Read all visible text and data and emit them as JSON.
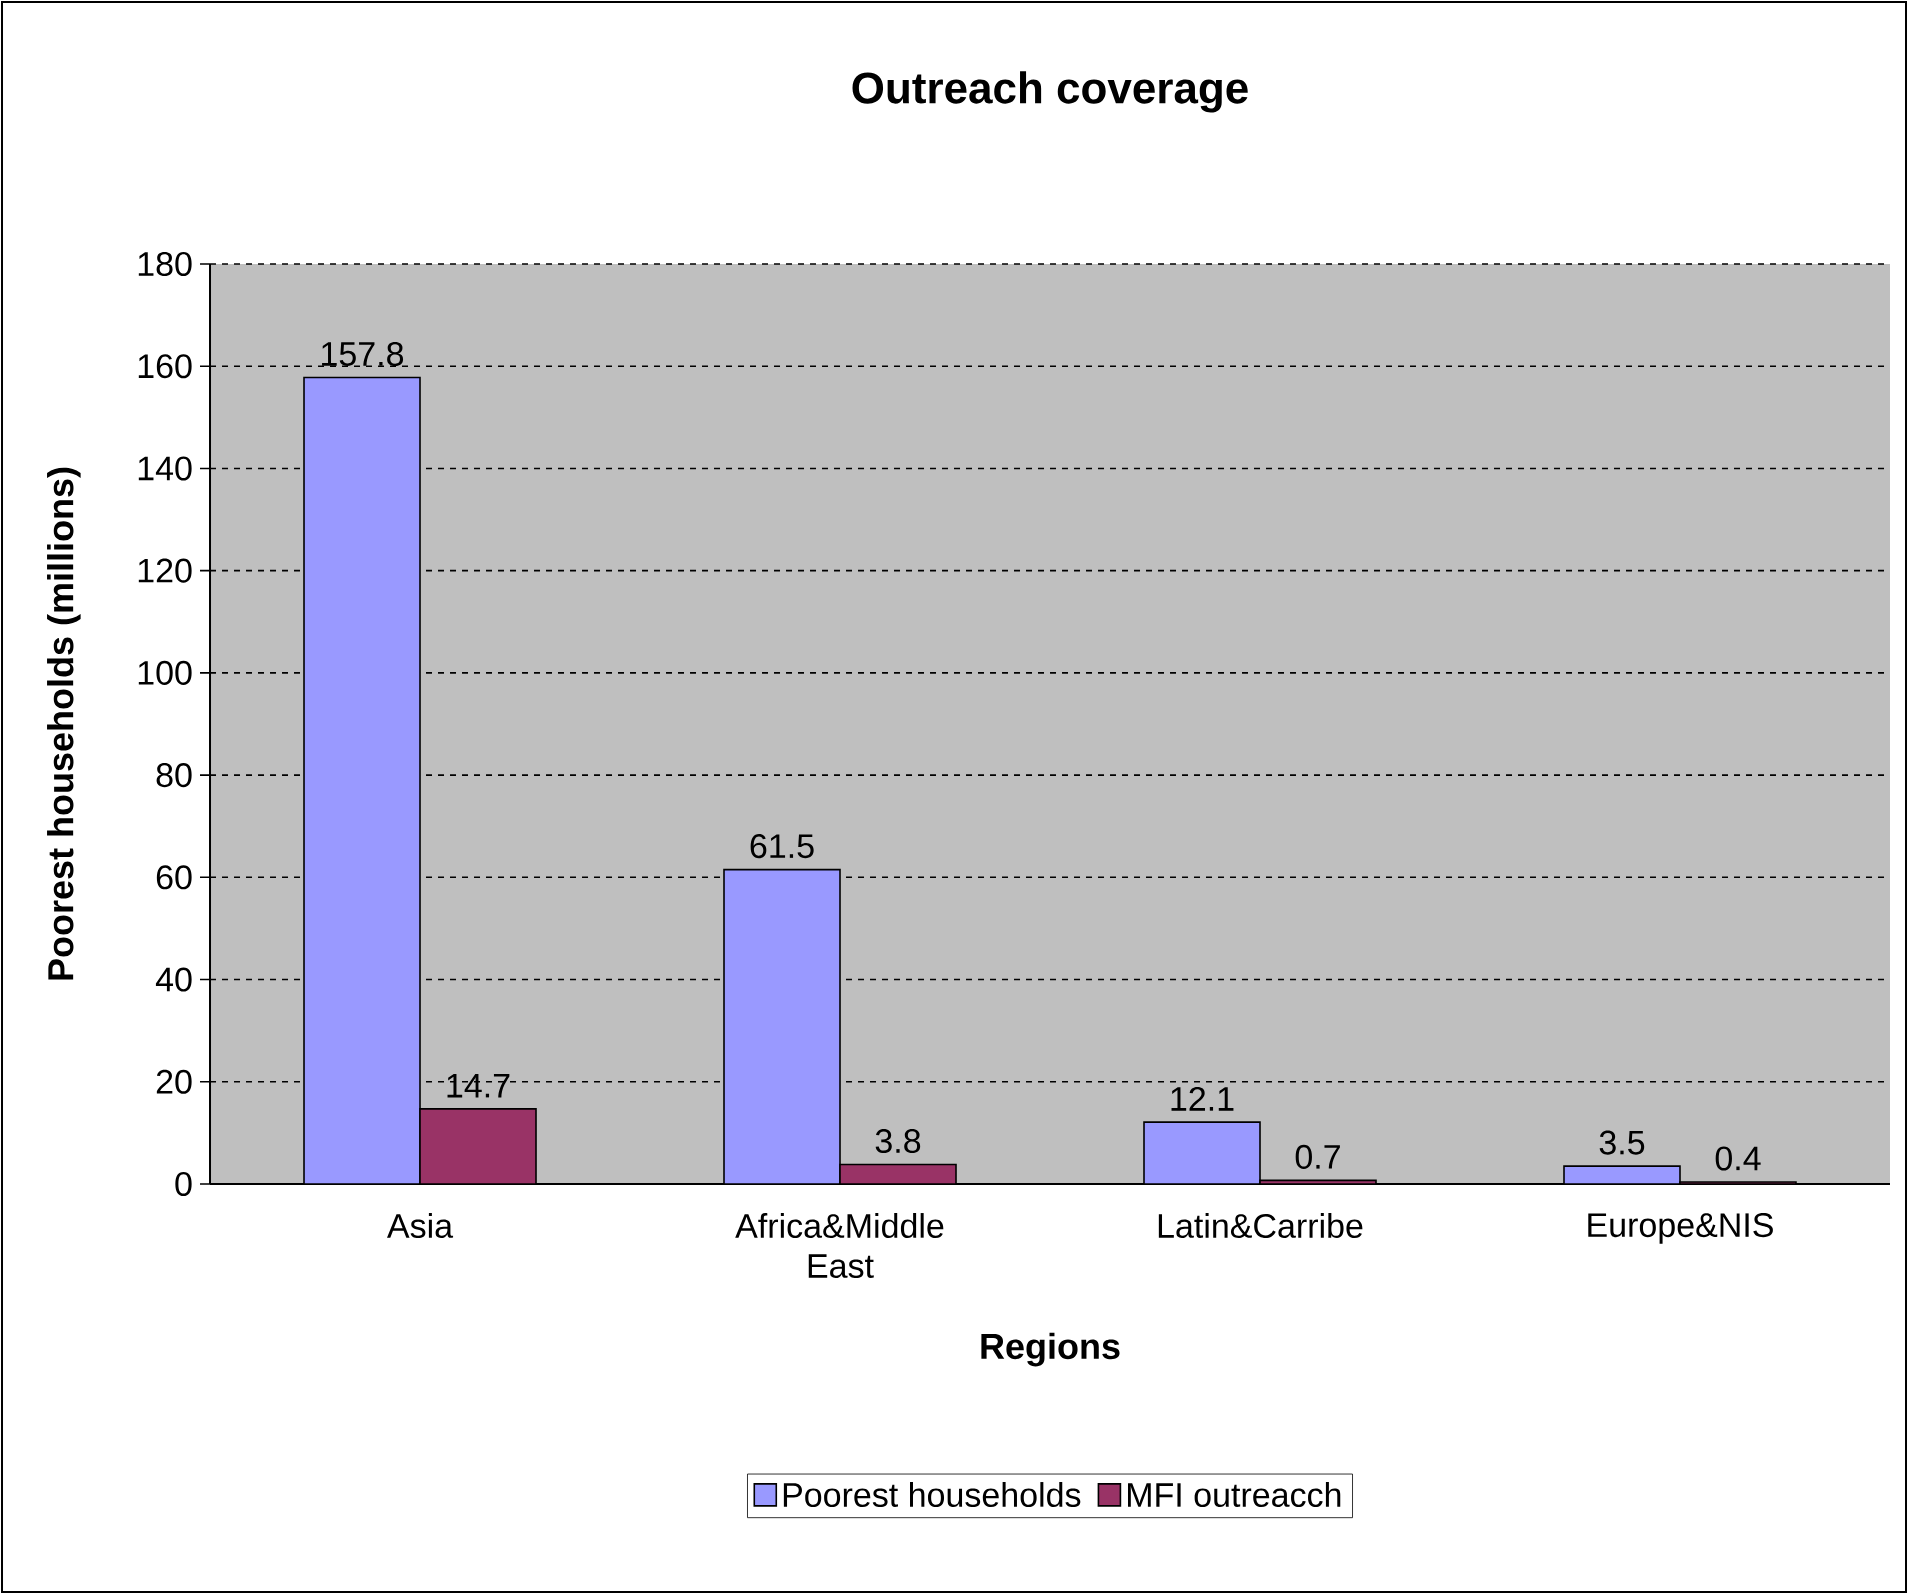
{
  "chart_data": {
    "type": "bar",
    "title": "Outreach coverage",
    "xlabel": "Regions",
    "ylabel": "Poorest households (millions)",
    "categories": [
      "Asia",
      "Africa&Middle East",
      "Latin&Carribe",
      "Europe&NIS"
    ],
    "series": [
      {
        "name": "Poorest households",
        "color": "#9999ff",
        "values": [
          157.8,
          61.5,
          12.1,
          3.5
        ]
      },
      {
        "name": "MFI outreacch",
        "color": "#993366",
        "values": [
          14.7,
          3.8,
          0.7,
          0.4
        ]
      }
    ],
    "ylim": [
      0,
      180
    ],
    "yticks": [
      0,
      20,
      40,
      60,
      80,
      100,
      120,
      140,
      160,
      180
    ],
    "grid": "y",
    "legend": "bottom",
    "data_labels": true
  }
}
